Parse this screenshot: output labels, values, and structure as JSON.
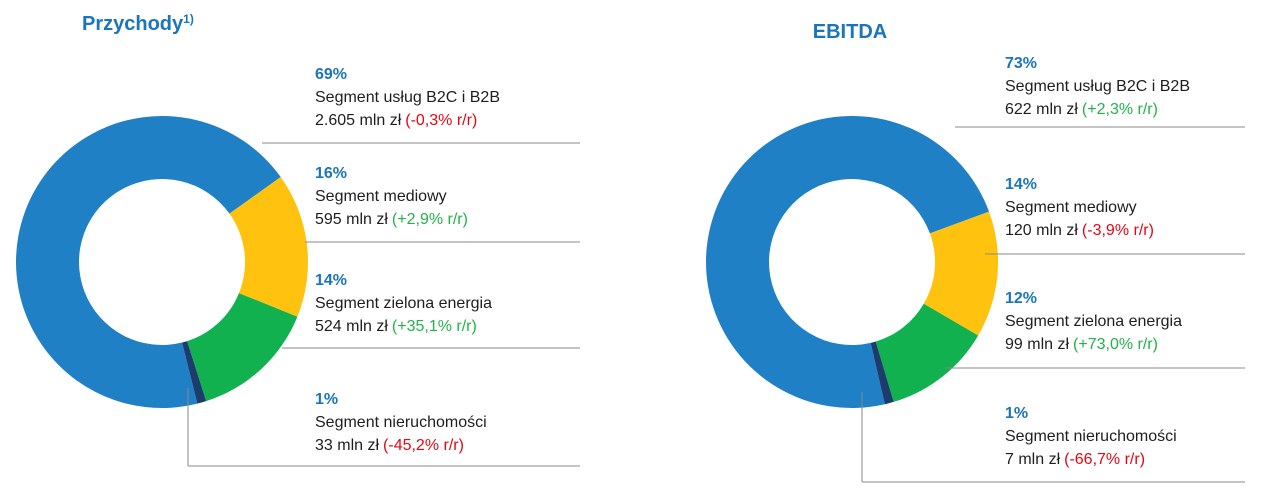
{
  "chart_data": [
    {
      "type": "pie",
      "title": "Przychody",
      "title_note": "1)",
      "categories": [
        "Segment usług B2C i B2B",
        "Segment mediowy",
        "Segment zielona energia",
        "Segment nieruchomości"
      ],
      "values": [
        69,
        16,
        14,
        1
      ],
      "value_labels": [
        "69%",
        "16%",
        "14%",
        "1%"
      ],
      "amounts": [
        "2.605 mln zł",
        "595 mln zł",
        "524 mln zł",
        "33 mln zł"
      ],
      "changes": [
        "(-0,3% r/r)",
        "(+2,9% r/r)",
        "(+35,1% r/r)",
        "(-45,2% r/r)"
      ],
      "change_colors": [
        "#e30613",
        "#21b24b",
        "#21b24b",
        "#e30613"
      ],
      "colors": [
        "#1f80c6",
        "#ffc20e",
        "#12b150",
        "#1d3c6e"
      ]
    },
    {
      "type": "pie",
      "title": "EBITDA",
      "categories": [
        "Segment usług B2C i B2B",
        "Segment mediowy",
        "Segment zielona energia",
        "Segment nieruchomości"
      ],
      "values": [
        73,
        14,
        12,
        1
      ],
      "value_labels": [
        "73%",
        "14%",
        "12%",
        "1%"
      ],
      "amounts": [
        "622 mln zł",
        "120 mln zł",
        "99 mln zł",
        "7 mln zł"
      ],
      "changes": [
        "(+2,3% r/r)",
        "(-3,9% r/r)",
        "(+73,0% r/r)",
        "(-66,7% r/r)"
      ],
      "change_colors": [
        "#21b24b",
        "#e30613",
        "#21b24b",
        "#e30613"
      ],
      "colors": [
        "#1f80c6",
        "#ffc20e",
        "#12b150",
        "#1d3c6e"
      ]
    }
  ]
}
